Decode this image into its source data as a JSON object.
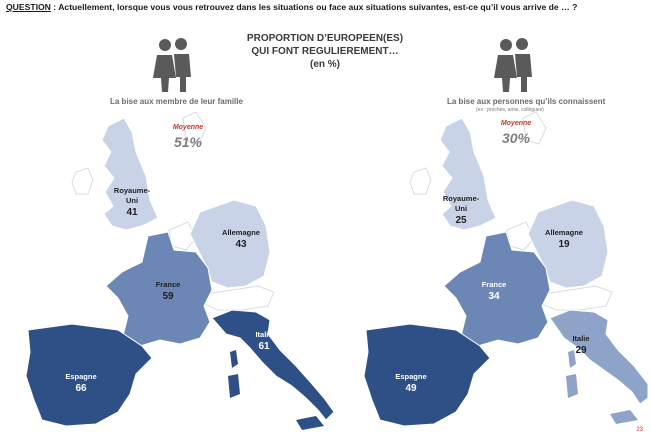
{
  "question": {
    "label": "QUESTION",
    "text": " :  Actuellement, lorsque vous vous retrouvez dans les situations ou face aux situations suivantes, est-ce qu’il vous arrive de … ?"
  },
  "title": {
    "line1": "PROPORTION D’EUROPEEN(ES)",
    "line2": "QUI FONT REGULIEREMENT…",
    "line3": "(en %)"
  },
  "page_number": "23",
  "colors": {
    "espagne": "#2f4f87",
    "italie_left": "#2f4f87",
    "france": "#6c86b5",
    "italie_right": "#8ea3c8",
    "allemagne": "#c9d3e8",
    "royaume_uni": "#c9d3e8",
    "other": "#ffffff"
  },
  "chart_data": [
    {
      "type": "map",
      "caption": "La bise aux membre de leur famille",
      "average_label": "Moyenne",
      "average_value": "51%",
      "regions": [
        {
          "name": "Royaume-Uni",
          "name_line1": "Royaume-",
          "name_line2": "Uni",
          "value": 41
        },
        {
          "name": "Allemagne",
          "value": 43
        },
        {
          "name": "France",
          "value": 59
        },
        {
          "name": "Italie",
          "value": 61
        },
        {
          "name": "Espagne",
          "value": 66
        }
      ]
    },
    {
      "type": "map",
      "caption": "La bise aux personnes qu’ils connaissent",
      "caption_sub": "(ex : proches, amis, collègues)",
      "average_label": "Moyenne",
      "average_value": "30%",
      "regions": [
        {
          "name": "Royaume-Uni",
          "name_line1": "Royaume-",
          "name_line2": "Uni",
          "value": 25
        },
        {
          "name": "Allemagne",
          "value": 19
        },
        {
          "name": "France",
          "value": 34
        },
        {
          "name": "Italie",
          "value": 29
        },
        {
          "name": "Espagne",
          "value": 49
        }
      ]
    }
  ]
}
